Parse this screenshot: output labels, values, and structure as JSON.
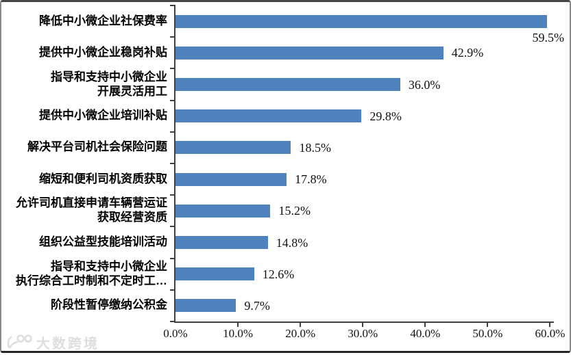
{
  "chart_data": {
    "type": "bar",
    "orientation": "horizontal",
    "title": "",
    "xlabel": "",
    "ylabel": "",
    "categories": [
      "降低中小微企业社保费率",
      "提供中小微企业稳岗补贴",
      "指导和支持中小微企业\n开展灵活用工",
      "提供中小微企业培训补贴",
      "解决平台司机社会保险问题",
      "缩短和便利司机资质获取",
      "允许司机直接申请车辆营运证\n获取经营资质",
      "组织公益型技能培训活动",
      "指导和支持中小微企业\n执行综合工时制和不定时工…",
      "阶段性暂停缴纳公积金"
    ],
    "values": [
      59.5,
      42.9,
      36.0,
      29.8,
      18.5,
      17.8,
      15.2,
      14.8,
      12.6,
      9.7
    ],
    "value_labels": [
      "59.5%",
      "42.9%",
      "36.0%",
      "29.8%",
      "18.5%",
      "17.8%",
      "15.2%",
      "14.8%",
      "12.6%",
      "9.7%"
    ],
    "x_ticks": [
      "0.0%",
      "10.0%",
      "20.0%",
      "30.0%",
      "40.0%",
      "50.0%",
      "60.0%"
    ],
    "xlim": [
      0,
      60
    ],
    "grid": false,
    "legend": null,
    "bar_color": "#4f81bd",
    "axis_color": "#3f3f3f",
    "background_color": "#ffffff"
  },
  "watermark": {
    "text": "大数跨境"
  }
}
